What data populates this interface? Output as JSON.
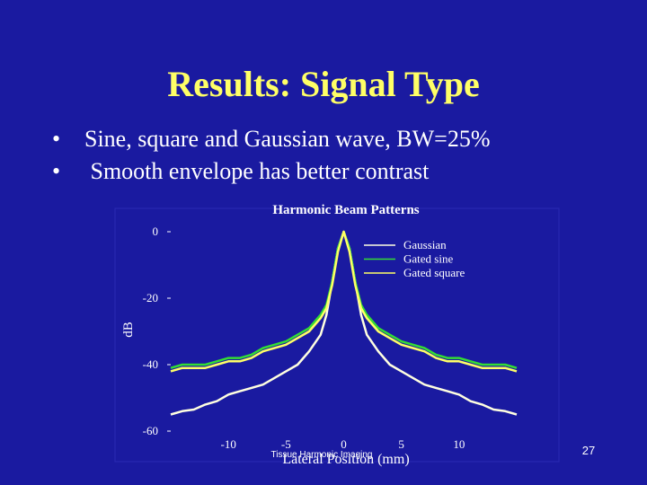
{
  "slide": {
    "title": "Results: Signal Type",
    "bullets": [
      "Sine, square and Gaussian wave, BW=25%",
      " Smooth envelope has better contrast"
    ],
    "footer_text": "Tissue Harmonic Imaging",
    "page_number": "27"
  },
  "colors": {
    "background": "#1a1aa0",
    "title": "#ffff66",
    "text": "#ffffff",
    "gaussian": "#ffffe0",
    "gated_sine": "#33dd33",
    "gated_square": "#ffff66"
  },
  "chart_data": {
    "type": "line",
    "title": "Harmonic Beam Patterns",
    "xlabel": "Lateral Position (mm)",
    "ylabel": "dB",
    "xlim": [
      -15,
      15
    ],
    "ylim": [
      -60,
      0
    ],
    "xticks": [
      -10,
      -5,
      0,
      5,
      10
    ],
    "yticks": [
      0,
      -20,
      -40,
      -60
    ],
    "legend_position": "top-right",
    "grid": false,
    "series": [
      {
        "name": "Gaussian",
        "color": "#ffffe0",
        "x": [
          -15,
          -14,
          -13,
          -12,
          -11,
          -10,
          -9,
          -8,
          -7,
          -6,
          -5,
          -4,
          -3,
          -2,
          -1.5,
          -1,
          -0.5,
          0,
          0.5,
          1,
          1.5,
          2,
          3,
          4,
          5,
          6,
          7,
          8,
          9,
          10,
          11,
          12,
          13,
          14,
          15
        ],
        "y": [
          -55,
          -54,
          -53.5,
          -52,
          -51,
          -49,
          -48,
          -47,
          -46,
          -44,
          -42,
          -40,
          -36,
          -31,
          -25,
          -15,
          -5,
          0,
          -5,
          -15,
          -25,
          -31,
          -36,
          -40,
          -42,
          -44,
          -46,
          -47,
          -48,
          -49,
          -51,
          -52,
          -53.5,
          -54,
          -55
        ]
      },
      {
        "name": "Gated sine",
        "color": "#33dd33",
        "x": [
          -15,
          -14,
          -13,
          -12,
          -11,
          -10,
          -9,
          -8,
          -7,
          -6,
          -5,
          -4,
          -3,
          -2,
          -1.5,
          -1,
          -0.5,
          0,
          0.5,
          1,
          1.5,
          2,
          3,
          4,
          5,
          6,
          7,
          8,
          9,
          10,
          11,
          12,
          13,
          14,
          15
        ],
        "y": [
          -41,
          -40,
          -40,
          -40,
          -39,
          -38,
          -38,
          -37,
          -35,
          -34,
          -33,
          -31,
          -29,
          -25,
          -22,
          -15,
          -5,
          0,
          -5,
          -15,
          -22,
          -25,
          -29,
          -31,
          -33,
          -34,
          -35,
          -37,
          -38,
          -38,
          -39,
          -40,
          -40,
          -40,
          -41
        ]
      },
      {
        "name": "Gated square",
        "color": "#ffff66",
        "x": [
          -15,
          -14,
          -13,
          -12,
          -11,
          -10,
          -9,
          -8,
          -7,
          -6,
          -5,
          -4,
          -3,
          -2,
          -1.5,
          -1,
          -0.5,
          0,
          0.5,
          1,
          1.5,
          2,
          3,
          4,
          5,
          6,
          7,
          8,
          9,
          10,
          11,
          12,
          13,
          14,
          15
        ],
        "y": [
          -42,
          -41,
          -41,
          -41,
          -40,
          -39,
          -39,
          -38,
          -36,
          -35,
          -34,
          -32,
          -30,
          -26,
          -23,
          -16,
          -6,
          0,
          -6,
          -16,
          -23,
          -26,
          -30,
          -32,
          -34,
          -35,
          -36,
          -38,
          -39,
          -39,
          -40,
          -41,
          -41,
          -41,
          -42
        ]
      }
    ]
  }
}
